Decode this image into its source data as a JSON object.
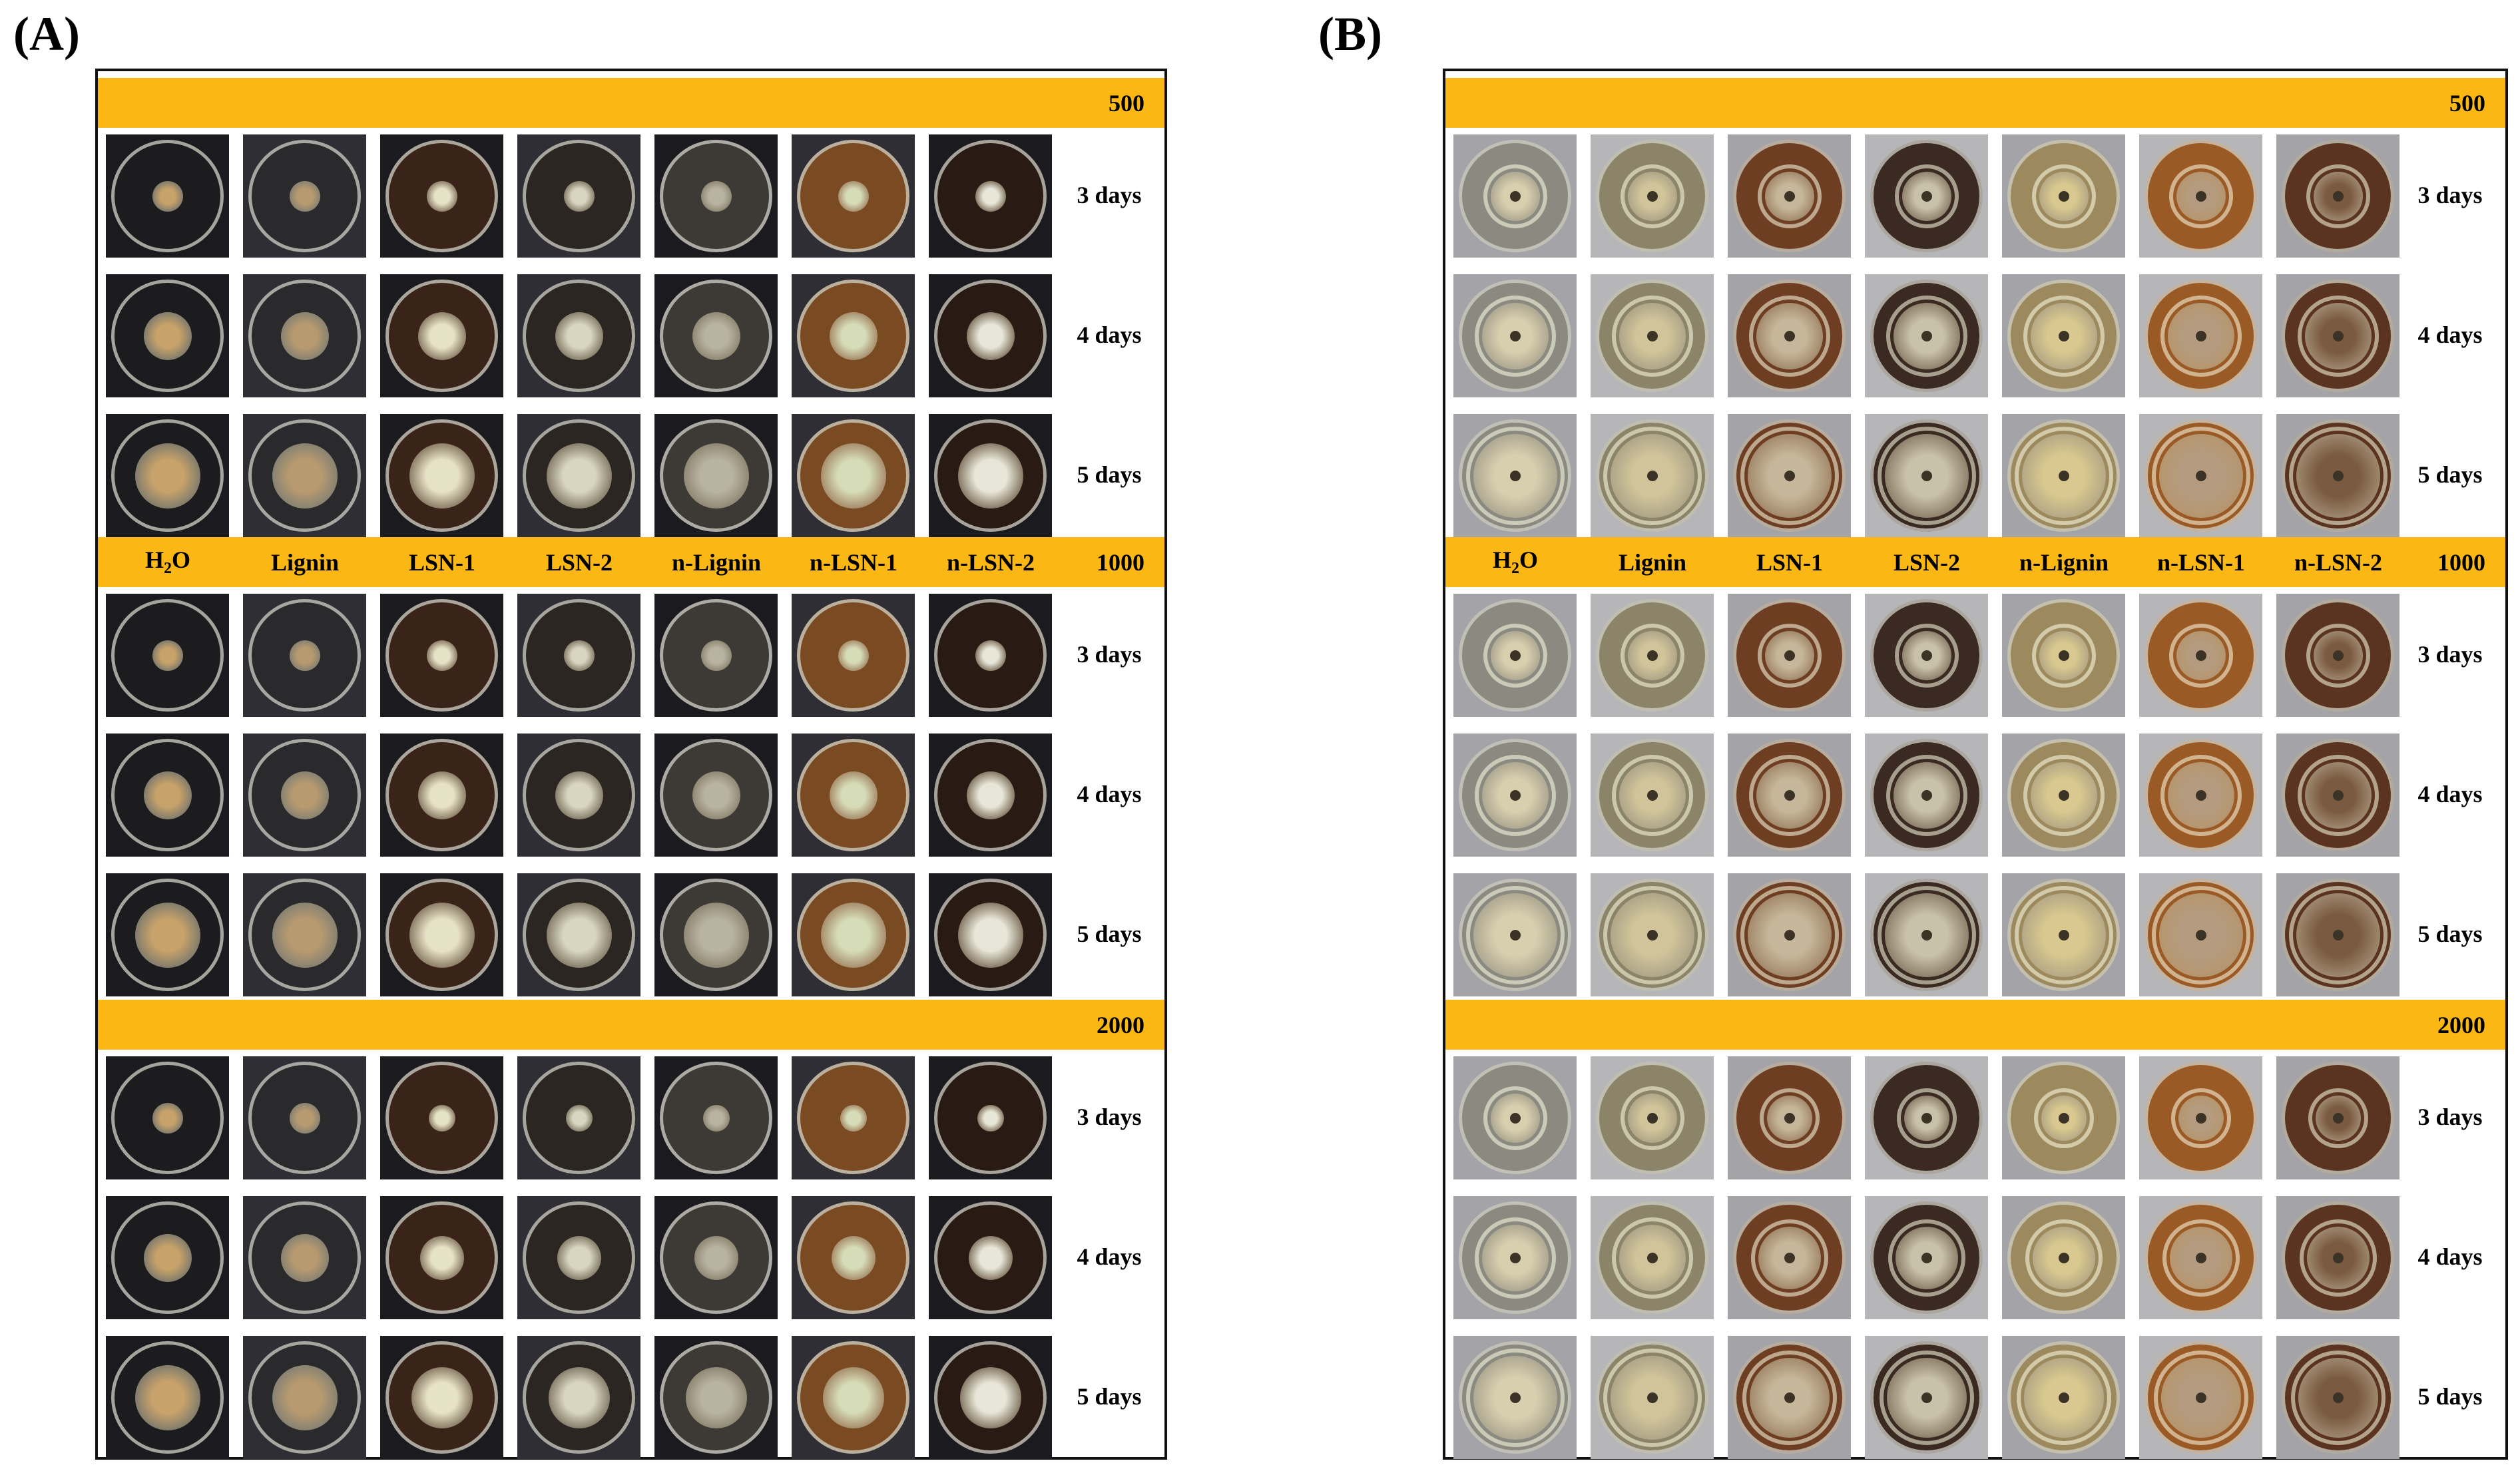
{
  "panels": [
    {
      "label": "(A)"
    },
    {
      "label": "(B)"
    }
  ],
  "treatments": [
    "H2O",
    "Lignin",
    "LSN-1",
    "LSN-2",
    "n-Lignin",
    "n-LSN-1",
    "n-LSN-2"
  ],
  "treatment_display": {
    "h2o_main": "H",
    "h2o_sub": "2",
    "h2o_tail": "O"
  },
  "concentrations": [
    "500",
    "1000",
    "2000"
  ],
  "days": [
    "3 days",
    "4 days",
    "5 days"
  ],
  "colors": {
    "band": "#fbb713",
    "background_dark": "#2a2a30",
    "background_light": "#c9c9cc"
  }
}
